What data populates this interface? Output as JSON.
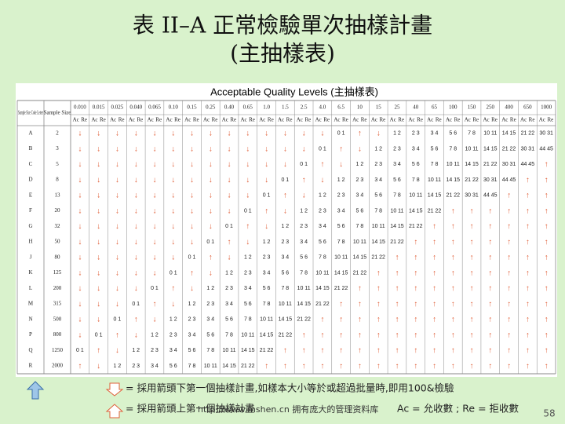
{
  "title_line1": "表 II–A 正常檢驗單次抽樣計畫",
  "title_line2": "(主抽樣表)",
  "table": {
    "caption": "Acceptable Quality Levels (主抽樣表)",
    "code_letter_header": "Sample Size Code Letter",
    "sample_size_header": "Sample Size",
    "ac": "Ac",
    "re": "Re",
    "aql": [
      "0.010",
      "0.015",
      "0.025",
      "0.040",
      "0.065",
      "0.10",
      "0.15",
      "0.25",
      "0.40",
      "0.65",
      "1.0",
      "1.5",
      "2.5",
      "4.0",
      "6.5",
      "10",
      "15",
      "25",
      "40",
      "65",
      "100",
      "150",
      "250",
      "400",
      "650",
      "1000"
    ],
    "rows": [
      {
        "letter": "A",
        "size": "2",
        "cells": [
          "↓",
          "↓",
          "↓",
          "↓",
          "↓",
          "↓",
          "↓",
          "↓",
          "↓",
          "↓",
          "↓",
          "↓",
          "↓",
          "↓",
          "0 1",
          "↑",
          "↓",
          "1 2",
          "2 3",
          "3 4",
          "5 6",
          "7 8",
          "10 11",
          "14 15",
          "21 22",
          "30 31"
        ]
      },
      {
        "letter": "B",
        "size": "3",
        "cells": [
          "↓",
          "↓",
          "↓",
          "↓",
          "↓",
          "↓",
          "↓",
          "↓",
          "↓",
          "↓",
          "↓",
          "↓",
          "↓",
          "0 1",
          "↑",
          "↓",
          "1 2",
          "2 3",
          "3 4",
          "5 6",
          "7 8",
          "10 11",
          "14 15",
          "21 22",
          "30 31",
          "44 45"
        ]
      },
      {
        "letter": "C",
        "size": "5",
        "cells": [
          "↓",
          "↓",
          "↓",
          "↓",
          "↓",
          "↓",
          "↓",
          "↓",
          "↓",
          "↓",
          "↓",
          "↓",
          "0 1",
          "↑",
          "↓",
          "1 2",
          "2 3",
          "3 4",
          "5 6",
          "7 8",
          "10 11",
          "14 15",
          "21 22",
          "30 31",
          "44 45",
          "↑"
        ]
      },
      {
        "letter": "D",
        "size": "8",
        "cells": [
          "↓",
          "↓",
          "↓",
          "↓",
          "↓",
          "↓",
          "↓",
          "↓",
          "↓",
          "↓",
          "↓",
          "0 1",
          "↑",
          "↓",
          "1 2",
          "2 3",
          "3 4",
          "5 6",
          "7 8",
          "10 11",
          "14 15",
          "21 22",
          "30 31",
          "44 45",
          "↑",
          "↑"
        ]
      },
      {
        "letter": "E",
        "size": "13",
        "cells": [
          "↓",
          "↓",
          "↓",
          "↓",
          "↓",
          "↓",
          "↓",
          "↓",
          "↓",
          "↓",
          "0 1",
          "↑",
          "↓",
          "1 2",
          "2 3",
          "3 4",
          "5 6",
          "7 8",
          "10 11",
          "14 15",
          "21 22",
          "30 31",
          "44 45",
          "↑",
          "↑",
          "↑"
        ]
      },
      {
        "letter": "F",
        "size": "20",
        "cells": [
          "↓",
          "↓",
          "↓",
          "↓",
          "↓",
          "↓",
          "↓",
          "↓",
          "↓",
          "0 1",
          "↑",
          "↓",
          "1 2",
          "2 3",
          "3 4",
          "5 6",
          "7 8",
          "10 11",
          "14 15",
          "21 22",
          "↑",
          "↑",
          "↑",
          "↑",
          "↑",
          "↑"
        ]
      },
      {
        "letter": "G",
        "size": "32",
        "cells": [
          "↓",
          "↓",
          "↓",
          "↓",
          "↓",
          "↓",
          "↓",
          "↓",
          "0 1",
          "↑",
          "↓",
          "1 2",
          "2 3",
          "3 4",
          "5 6",
          "7 8",
          "10 11",
          "14 15",
          "21 22",
          "↑",
          "↑",
          "↑",
          "↑",
          "↑",
          "↑",
          "↑"
        ]
      },
      {
        "letter": "H",
        "size": "50",
        "cells": [
          "↓",
          "↓",
          "↓",
          "↓",
          "↓",
          "↓",
          "↓",
          "0 1",
          "↑",
          "↓",
          "1 2",
          "2 3",
          "3 4",
          "5 6",
          "7 8",
          "10 11",
          "14 15",
          "21 22",
          "↑",
          "↑",
          "↑",
          "↑",
          "↑",
          "↑",
          "↑",
          "↑"
        ]
      },
      {
        "letter": "J",
        "size": "80",
        "cells": [
          "↓",
          "↓",
          "↓",
          "↓",
          "↓",
          "↓",
          "0 1",
          "↑",
          "↓",
          "1 2",
          "2 3",
          "3 4",
          "5 6",
          "7 8",
          "10 11",
          "14 15",
          "21 22",
          "↑",
          "↑",
          "↑",
          "↑",
          "↑",
          "↑",
          "↑",
          "↑",
          "↑"
        ]
      },
      {
        "letter": "K",
        "size": "125",
        "cells": [
          "↓",
          "↓",
          "↓",
          "↓",
          "↓",
          "0 1",
          "↑",
          "↓",
          "1 2",
          "2 3",
          "3 4",
          "5 6",
          "7 8",
          "10 11",
          "14 15",
          "21 22",
          "↑",
          "↑",
          "↑",
          "↑",
          "↑",
          "↑",
          "↑",
          "↑",
          "↑",
          "↑"
        ]
      },
      {
        "letter": "L",
        "size": "200",
        "cells": [
          "↓",
          "↓",
          "↓",
          "↓",
          "0 1",
          "↑",
          "↓",
          "1 2",
          "2 3",
          "3 4",
          "5 6",
          "7 8",
          "10 11",
          "14 15",
          "21 22",
          "↑",
          "↑",
          "↑",
          "↑",
          "↑",
          "↑",
          "↑",
          "↑",
          "↑",
          "↑",
          "↑"
        ]
      },
      {
        "letter": "M",
        "size": "315",
        "cells": [
          "↓",
          "↓",
          "↓",
          "0 1",
          "↑",
          "↓",
          "1 2",
          "2 3",
          "3 4",
          "5 6",
          "7 8",
          "10 11",
          "14 15",
          "21 22",
          "↑",
          "↑",
          "↑",
          "↑",
          "↑",
          "↑",
          "↑",
          "↑",
          "↑",
          "↑",
          "↑",
          "↑"
        ]
      },
      {
        "letter": "N",
        "size": "500",
        "cells": [
          "↓",
          "↓",
          "0 1",
          "↑",
          "↓",
          "1 2",
          "2 3",
          "3 4",
          "5 6",
          "7 8",
          "10 11",
          "14 15",
          "21 22",
          "↑",
          "↑",
          "↑",
          "↑",
          "↑",
          "↑",
          "↑",
          "↑",
          "↑",
          "↑",
          "↑",
          "↑",
          "↑"
        ]
      },
      {
        "letter": "P",
        "size": "800",
        "cells": [
          "↓",
          "0 1",
          "↑",
          "↓",
          "1 2",
          "2 3",
          "3 4",
          "5 6",
          "7 8",
          "10 11",
          "14 15",
          "21 22",
          "↑",
          "↑",
          "↑",
          "↑",
          "↑",
          "↑",
          "↑",
          "↑",
          "↑",
          "↑",
          "↑",
          "↑",
          "↑",
          "↑"
        ]
      },
      {
        "letter": "Q",
        "size": "1250",
        "cells": [
          "0 1",
          "↑",
          "↓",
          "1 2",
          "2 3",
          "3 4",
          "5 6",
          "7 8",
          "10 11",
          "14 15",
          "21 22",
          "↑",
          "↑",
          "↑",
          "↑",
          "↑",
          "↑",
          "↑",
          "↑",
          "↑",
          "↑",
          "↑",
          "↑",
          "↑",
          "↑",
          "↑"
        ]
      },
      {
        "letter": "R",
        "size": "2000",
        "cells": [
          "↑",
          "↓",
          "1 2",
          "2 3",
          "3 4",
          "5 6",
          "7 8",
          "10 11",
          "14 15",
          "21 22",
          "↑",
          "↑",
          "↑",
          "↑",
          "↑",
          "↑",
          "↑",
          "↑",
          "↑",
          "↑",
          "↑",
          "↑",
          "↑",
          "↑",
          "↑",
          "↑"
        ]
      }
    ]
  },
  "legend": {
    "down": "= 採用箭頭下第一個抽樣計畫,如樣本大小等於或超過批量時,即用100&檢驗",
    "up": "= 採用箭頭上第一個抽樣計畫",
    "watermark": "http://www.mshen.cn 拥有庞大的管理资料库",
    "ac_re": "Ac = 允收數 ; Re = 拒收數"
  },
  "page_number": "58"
}
